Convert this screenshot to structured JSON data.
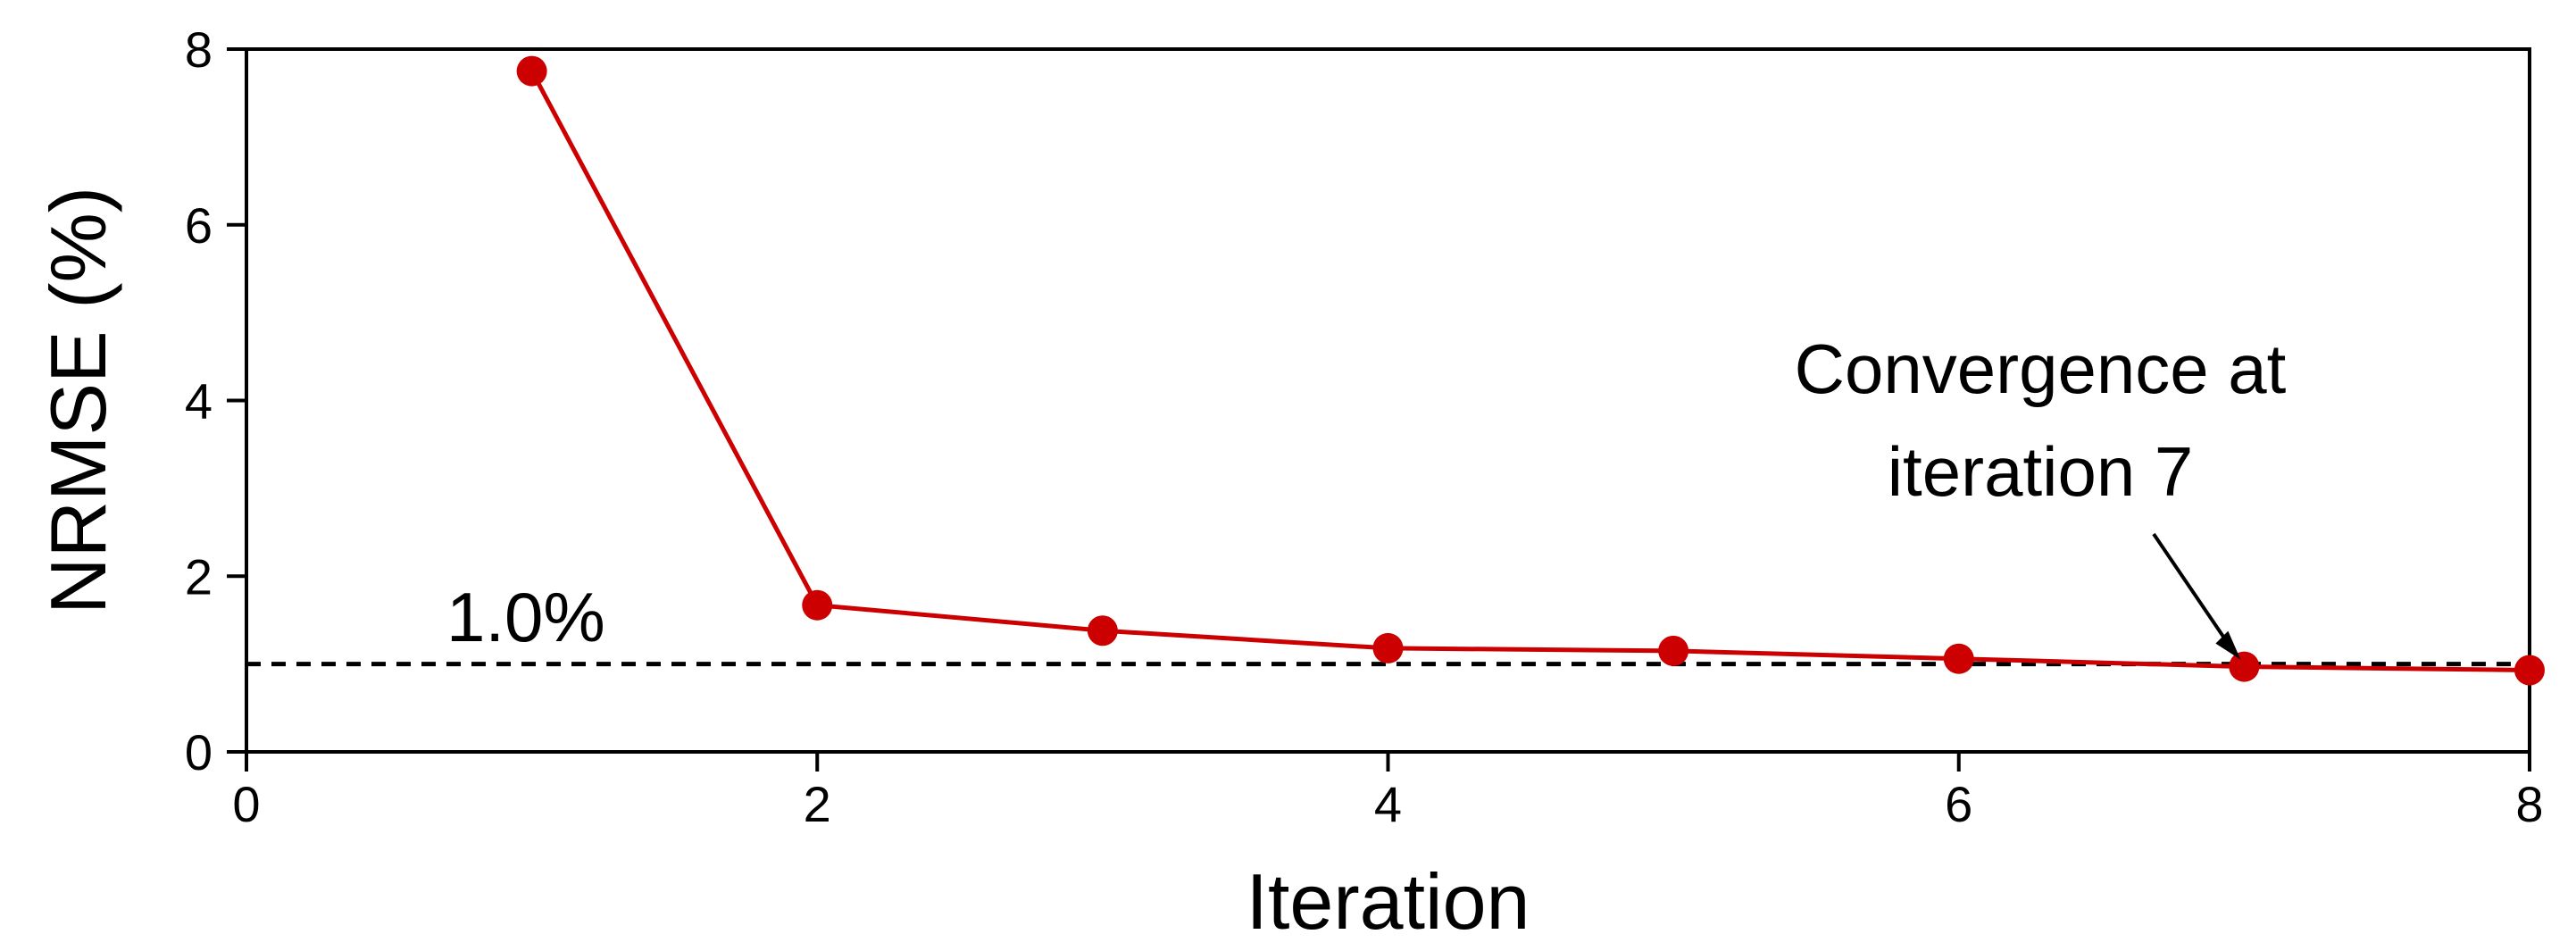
{
  "chart_data": {
    "type": "line",
    "title": "",
    "xlabel": "Iteration",
    "ylabel": "NRMSE (%)",
    "xlim": [
      0,
      8
    ],
    "ylim": [
      0,
      8
    ],
    "xticks": [
      0,
      2,
      4,
      6,
      8
    ],
    "yticks": [
      0,
      2,
      4,
      6,
      8
    ],
    "grid": false,
    "series": [
      {
        "color": "#cc0000",
        "x": [
          1,
          2,
          3,
          4,
          5,
          6,
          7,
          8
        ],
        "y": [
          7.75,
          1.67,
          1.38,
          1.18,
          1.15,
          1.06,
          0.97,
          0.93
        ]
      }
    ],
    "reference_line": {
      "y": 1.0,
      "style": "dashed",
      "color": "#000000",
      "label": "1.0%"
    },
    "annotation": {
      "lines": [
        "Convergence at",
        "iteration 7"
      ],
      "target_x": 7,
      "target_y": 0.97
    }
  }
}
